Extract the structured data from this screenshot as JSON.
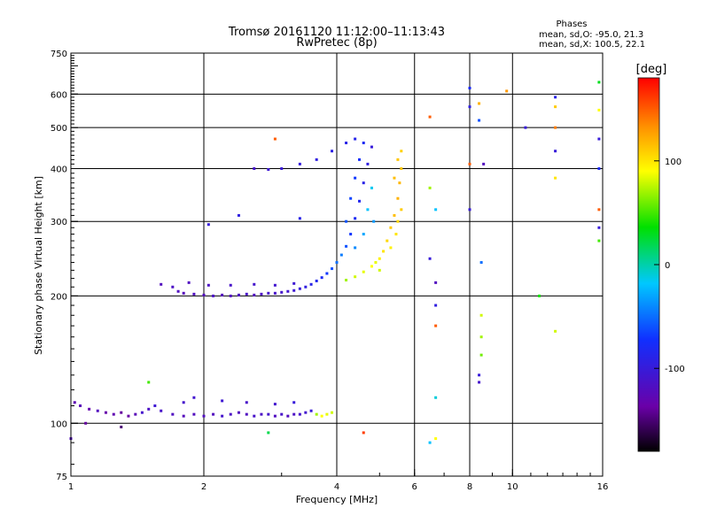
{
  "chart_data": {
    "type": "scatter",
    "title": "Tromsø 20161120 11:12:00–11:13:43",
    "subtitle": "RwPretec (8p)",
    "info": {
      "heading": "Phases",
      "line1": "mean, sd,O: -95.0, 21.3",
      "line2": "mean, sd,X: 100.5, 22.1"
    },
    "xlabel": "Frequency [MHz]",
    "ylabel": "Stationary phase Virtual Height [km]",
    "xscale": "log",
    "yscale": "log",
    "xlim": [
      1,
      16
    ],
    "ylim": [
      75,
      750
    ],
    "x_ticks": [
      {
        "value": 1,
        "label": "1"
      },
      {
        "value": 2,
        "label": "2"
      },
      {
        "value": 4,
        "label": "4"
      },
      {
        "value": 6,
        "label": "6"
      },
      {
        "value": 8,
        "label": "8"
      },
      {
        "value": 10,
        "label": "10"
      },
      {
        "value": 16,
        "label": "16"
      }
    ],
    "x_grid": [
      2,
      4,
      6,
      8,
      10
    ],
    "y_ticks": [
      {
        "value": 75,
        "label": "75"
      },
      {
        "value": 100,
        "label": "100"
      },
      {
        "value": 200,
        "label": "200"
      },
      {
        "value": 300,
        "label": "300"
      },
      {
        "value": 400,
        "label": "400"
      },
      {
        "value": 500,
        "label": "500"
      },
      {
        "value": 600,
        "label": "600"
      },
      {
        "value": 750,
        "label": "750"
      }
    ],
    "y_grid": [
      100,
      200,
      300,
      400,
      500,
      600
    ],
    "grid": true,
    "colorbar": {
      "label": "[deg]",
      "range": [
        -180,
        180
      ],
      "ticks": [
        {
          "value": 100,
          "label": "100"
        },
        {
          "value": 0,
          "label": "0"
        },
        {
          "value": -100,
          "label": "-100"
        }
      ],
      "colormap": "rainbow (black-purple-blue-cyan-green-yellow-red)"
    },
    "series": [
      {
        "description_trace": "E-layer echo",
        "points": [
          [
            1.02,
            112,
            -128
          ],
          [
            1.05,
            110,
            -125
          ],
          [
            1.1,
            108,
            -132
          ],
          [
            1.15,
            107,
            -120
          ],
          [
            1.2,
            106,
            -135
          ],
          [
            1.25,
            105,
            -130
          ],
          [
            1.3,
            106,
            -140
          ],
          [
            1.35,
            104,
            -138
          ],
          [
            1.4,
            105,
            -125
          ],
          [
            1.45,
            106,
            -110
          ],
          [
            1.5,
            108,
            -115
          ],
          [
            1.55,
            110,
            -105
          ],
          [
            1.6,
            107,
            -112
          ],
          [
            1.7,
            105,
            -118
          ],
          [
            1.8,
            104,
            -122
          ],
          [
            1.9,
            105,
            -120
          ],
          [
            2.0,
            104,
            -118
          ],
          [
            2.1,
            105,
            -120
          ],
          [
            2.2,
            104,
            -110
          ],
          [
            2.3,
            105,
            -115
          ],
          [
            2.4,
            106,
            -120
          ],
          [
            2.5,
            105,
            -118
          ],
          [
            2.6,
            104,
            -112
          ],
          [
            2.7,
            105,
            -115
          ],
          [
            2.8,
            105,
            -110
          ],
          [
            2.9,
            104,
            -118
          ],
          [
            3.0,
            105,
            -112
          ],
          [
            3.1,
            104,
            -120
          ],
          [
            3.2,
            105,
            -115
          ],
          [
            3.3,
            105,
            -110
          ],
          [
            3.4,
            106,
            -108
          ],
          [
            3.5,
            107,
            -100
          ],
          [
            3.6,
            105,
            70
          ],
          [
            3.7,
            104,
            90
          ],
          [
            3.8,
            105,
            85
          ],
          [
            3.9,
            106,
            80
          ],
          [
            1.8,
            112,
            -110
          ],
          [
            1.9,
            115,
            -108
          ],
          [
            2.2,
            113,
            -105
          ],
          [
            2.5,
            112,
            -112
          ],
          [
            2.9,
            111,
            -108
          ],
          [
            3.2,
            112,
            -100
          ],
          [
            1.08,
            100,
            -140
          ],
          [
            1.3,
            98,
            -150
          ]
        ]
      },
      {
        "description_trace": "F-layer O-mode trace",
        "points": [
          [
            1.6,
            213,
            -120
          ],
          [
            1.7,
            210,
            -115
          ],
          [
            1.75,
            205,
            -118
          ],
          [
            1.8,
            203,
            -122
          ],
          [
            1.9,
            202,
            -118
          ],
          [
            2.0,
            201,
            -120
          ],
          [
            2.1,
            200,
            -115
          ],
          [
            2.2,
            201,
            -120
          ],
          [
            2.3,
            200,
            -118
          ],
          [
            2.4,
            201,
            -115
          ],
          [
            2.5,
            202,
            -112
          ],
          [
            2.6,
            201,
            -118
          ],
          [
            2.7,
            202,
            -115
          ],
          [
            2.8,
            203,
            -110
          ],
          [
            2.9,
            203,
            -112
          ],
          [
            3.0,
            204,
            -110
          ],
          [
            3.1,
            205,
            -108
          ],
          [
            3.2,
            206,
            -105
          ],
          [
            3.3,
            208,
            -100
          ],
          [
            3.4,
            210,
            -95
          ],
          [
            3.5,
            213,
            -90
          ],
          [
            3.6,
            217,
            -85
          ],
          [
            3.7,
            221,
            -80
          ],
          [
            3.8,
            226,
            -70
          ],
          [
            3.9,
            232,
            -60
          ],
          [
            4.0,
            240,
            -50
          ],
          [
            4.1,
            250,
            -45
          ],
          [
            4.2,
            262,
            -60
          ],
          [
            4.3,
            280,
            -70
          ],
          [
            4.4,
            305,
            -80
          ],
          [
            4.5,
            335,
            -85
          ],
          [
            4.6,
            370,
            -90
          ],
          [
            4.7,
            410,
            -95
          ],
          [
            4.8,
            450,
            -100
          ],
          [
            1.85,
            215,
            -118
          ],
          [
            2.05,
            212,
            -115
          ],
          [
            2.3,
            212,
            -112
          ],
          [
            2.6,
            213,
            -110
          ],
          [
            2.9,
            212,
            -108
          ],
          [
            3.2,
            214,
            -105
          ],
          [
            4.2,
            300,
            -60
          ],
          [
            4.3,
            340,
            -65
          ],
          [
            4.4,
            380,
            -70
          ],
          [
            4.5,
            420,
            -75
          ],
          [
            4.6,
            460,
            -80
          ],
          [
            4.4,
            260,
            -40
          ],
          [
            4.6,
            280,
            -30
          ],
          [
            4.7,
            320,
            -20
          ],
          [
            4.8,
            360,
            -15
          ],
          [
            4.85,
            300,
            -35
          ],
          [
            2.6,
            400,
            -110
          ],
          [
            2.8,
            398,
            -105
          ],
          [
            3.0,
            400,
            -102
          ],
          [
            3.3,
            410,
            -98
          ],
          [
            3.6,
            420,
            -95
          ],
          [
            3.9,
            440,
            -92
          ],
          [
            4.2,
            460,
            -90
          ],
          [
            4.4,
            470,
            -88
          ]
        ]
      },
      {
        "description_trace": "F-layer X-mode trace",
        "points": [
          [
            4.2,
            218,
            70
          ],
          [
            4.4,
            222,
            80
          ],
          [
            4.6,
            228,
            85
          ],
          [
            4.8,
            235,
            90
          ],
          [
            5.0,
            245,
            95
          ],
          [
            5.1,
            255,
            100
          ],
          [
            5.2,
            270,
            105
          ],
          [
            5.3,
            290,
            110
          ],
          [
            5.4,
            310,
            115
          ],
          [
            5.5,
            340,
            120
          ],
          [
            5.55,
            370,
            118
          ],
          [
            5.6,
            400,
            112
          ],
          [
            5.6,
            440,
            108
          ],
          [
            5.45,
            280,
            100
          ],
          [
            5.5,
            300,
            105
          ],
          [
            5.6,
            320,
            110
          ],
          [
            5.4,
            380,
            115
          ],
          [
            5.5,
            420,
            112
          ],
          [
            5.3,
            260,
            95
          ],
          [
            4.9,
            240,
            85
          ],
          [
            5.0,
            230,
            80
          ]
        ]
      },
      {
        "description_trace": "scattered echoes",
        "points": [
          [
            2.9,
            470,
            150
          ],
          [
            6.5,
            530,
            150
          ],
          [
            6.5,
            360,
            70
          ],
          [
            6.7,
            320,
            -20
          ],
          [
            6.5,
            245,
            -100
          ],
          [
            6.7,
            215,
            -120
          ],
          [
            6.7,
            190,
            -95
          ],
          [
            6.7,
            170,
            150
          ],
          [
            6.5,
            90,
            -20
          ],
          [
            6.7,
            92,
            90
          ],
          [
            6.7,
            115,
            -10
          ],
          [
            8.0,
            620,
            -80
          ],
          [
            8.0,
            560,
            -95
          ],
          [
            8.0,
            410,
            150
          ],
          [
            8.0,
            320,
            -100
          ],
          [
            8.4,
            570,
            120
          ],
          [
            8.4,
            520,
            -60
          ],
          [
            8.6,
            410,
            -120
          ],
          [
            8.5,
            240,
            -50
          ],
          [
            8.5,
            180,
            80
          ],
          [
            8.5,
            160,
            70
          ],
          [
            8.5,
            145,
            60
          ],
          [
            8.4,
            130,
            -100
          ],
          [
            8.4,
            125,
            -110
          ],
          [
            9.7,
            610,
            130
          ],
          [
            10.7,
            500,
            -100
          ],
          [
            12.5,
            590,
            -90
          ],
          [
            12.5,
            560,
            110
          ],
          [
            12.5,
            500,
            140
          ],
          [
            12.5,
            440,
            -100
          ],
          [
            12.5,
            380,
            100
          ],
          [
            12.5,
            165,
            80
          ],
          [
            11.5,
            200,
            40
          ],
          [
            15.7,
            470,
            -100
          ],
          [
            15.7,
            400,
            -80
          ],
          [
            15.7,
            320,
            150
          ],
          [
            15.7,
            290,
            -100
          ],
          [
            15.7,
            270,
            50
          ],
          [
            15.7,
            640,
            30
          ],
          [
            15.7,
            550,
            90
          ],
          [
            1.0,
            92,
            -120
          ],
          [
            1.5,
            125,
            50
          ],
          [
            2.8,
            95,
            20
          ],
          [
            2.05,
            295,
            -100
          ],
          [
            2.4,
            310,
            -95
          ],
          [
            3.3,
            305,
            -90
          ],
          [
            4.6,
            95,
            160
          ]
        ]
      }
    ]
  }
}
